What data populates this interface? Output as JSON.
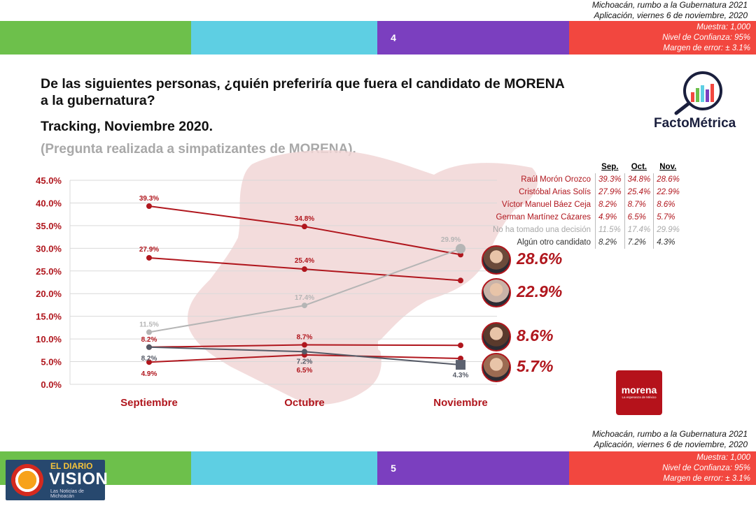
{
  "header_top": {
    "line1": "Michoacán, rumbo a la Gubernatura 2021",
    "line2": "Aplicación, viernes 6 de noviembre, 2020",
    "page": "4",
    "muestra": "Muestra: 1,000",
    "confianza": "Nivel de Confianza: 95%",
    "margen": "Margen de error: ± 3.1%"
  },
  "question": "De las siguientes personas, ¿quién preferiría que fuera el candidato de MORENA a la gubernatura?",
  "tracking": "Tracking, Noviembre 2020.",
  "subtitle": "(Pregunta realizada a simpatizantes de MORENA).",
  "brand": "FactoMétrica",
  "table": {
    "headers": [
      "Sep.",
      "Oct.",
      "Nov."
    ],
    "rows": [
      {
        "name": "Raúl Morón Orozco",
        "values": [
          "39.3%",
          "34.8%",
          "28.6%"
        ],
        "color": "#b0161d"
      },
      {
        "name": "Cristóbal Arias Solís",
        "values": [
          "27.9%",
          "25.4%",
          "22.9%"
        ],
        "color": "#b0161d"
      },
      {
        "name": "Víctor Manuel Báez Ceja",
        "values": [
          "8.2%",
          "8.7%",
          "8.6%"
        ],
        "color": "#b0161d"
      },
      {
        "name": "German Martínez Cázares",
        "values": [
          "4.9%",
          "6.5%",
          "5.7%"
        ],
        "color": "#b0161d"
      },
      {
        "name": "No ha tomado una decisión",
        "values": [
          "11.5%",
          "17.4%",
          "29.9%"
        ],
        "color": "#a8a8a8"
      },
      {
        "name": "Algún otro candidato",
        "values": [
          "8.2%",
          "7.2%",
          "4.3%"
        ],
        "color": "#333333"
      }
    ]
  },
  "chart_data": {
    "type": "line",
    "categories": [
      "Septiembre",
      "Octubre",
      "Noviembre"
    ],
    "ylim": [
      0,
      45
    ],
    "yticks": [
      "0.0%",
      "5.0%",
      "10.0%",
      "15.0%",
      "20.0%",
      "25.0%",
      "30.0%",
      "35.0%",
      "40.0%",
      "45.0%"
    ],
    "series": [
      {
        "name": "Raúl Morón Orozco",
        "values": [
          39.3,
          34.8,
          28.6
        ],
        "labels": [
          "39.3%",
          "34.8%",
          ""
        ],
        "color": "#b0161d"
      },
      {
        "name": "Cristóbal Arias Solís",
        "values": [
          27.9,
          25.4,
          22.9
        ],
        "labels": [
          "27.9%",
          "25.4%",
          ""
        ],
        "color": "#b0161d"
      },
      {
        "name": "Víctor Manuel Báez Ceja",
        "values": [
          8.2,
          8.7,
          8.6
        ],
        "labels": [
          "8.2%",
          "8.7%",
          ""
        ],
        "color": "#b0161d"
      },
      {
        "name": "German Martínez Cázares",
        "values": [
          4.9,
          6.5,
          5.7
        ],
        "labels": [
          "4.9%",
          "6.5%",
          ""
        ],
        "color": "#b0161d"
      },
      {
        "name": "No ha tomado una decisión",
        "values": [
          11.5,
          17.4,
          29.9
        ],
        "labels": [
          "11.5%",
          "17.4%",
          "29.9%"
        ],
        "color": "#b5b5b5"
      },
      {
        "name": "Algún otro candidato",
        "values": [
          8.2,
          7.2,
          4.3
        ],
        "labels": [
          "8.2%",
          "7.2%",
          "4.3%"
        ],
        "color": "#555a66"
      }
    ],
    "callouts": [
      "28.6%",
      "22.9%",
      "8.6%",
      "5.7%"
    ],
    "callout_color": "#b0161d",
    "grid": true
  },
  "morena_logo": {
    "name": "morena",
    "tagline": "La esperanza de México"
  },
  "footer": {
    "line1": "Michoacán, rumbo a la Gubernatura 2021",
    "line2": "Aplicación, viernes 6 de noviembre, 2020",
    "page": "5",
    "muestra": "Muestra: 1,000",
    "confianza": "Nivel de Confianza: 95%",
    "margen": "Margen de error: ± 3.1%"
  },
  "watermark": {
    "top": "EL DIARIO",
    "main": "VISION",
    "sub": "Las Noticias de Michoacán"
  }
}
